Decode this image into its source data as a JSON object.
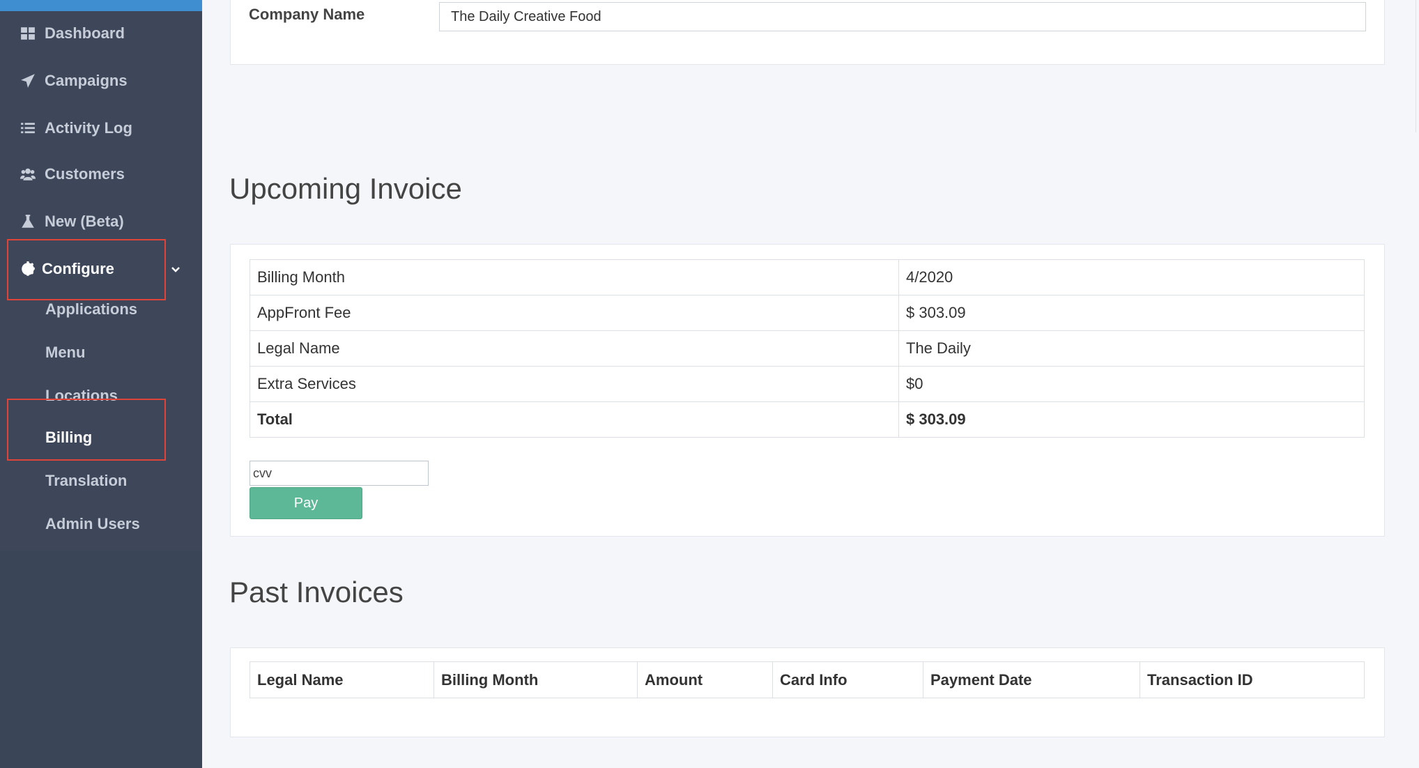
{
  "sidebar": {
    "items": [
      {
        "label": "Dashboard",
        "icon": "dashboard-icon"
      },
      {
        "label": "Campaigns",
        "icon": "paper-plane-icon"
      },
      {
        "label": "Activity Log",
        "icon": "list-icon"
      },
      {
        "label": "Customers",
        "icon": "users-icon"
      },
      {
        "label": "New (Beta)",
        "icon": "flask-icon"
      },
      {
        "label": "Configure",
        "icon": "gear-icon"
      }
    ],
    "subitems": [
      "Applications",
      "Menu",
      "Locations",
      "Billing",
      "Translation",
      "Admin Users"
    ]
  },
  "company": {
    "label": "Company Name",
    "value": "The Daily Creative Food"
  },
  "upcoming": {
    "title": "Upcoming Invoice",
    "rows": [
      {
        "label": "Billing Month",
        "value": "4/2020"
      },
      {
        "label": "AppFront Fee",
        "value": "$ 303.09"
      },
      {
        "label": "Legal Name",
        "value": "The Daily"
      },
      {
        "label": "Extra Services",
        "value": "$0"
      },
      {
        "label": "Total",
        "value": "$ 303.09"
      }
    ],
    "cvv_placeholder": "cvv",
    "pay_label": "Pay"
  },
  "past": {
    "title": "Past Invoices",
    "headers": [
      "Legal Name",
      "Billing Month",
      "Amount",
      "Card Info",
      "Payment Date",
      "Transaction ID"
    ]
  },
  "colors": {
    "sidebar_bg": "#3e475a",
    "accent_top": "#3e8ed0",
    "highlight": "#e04337",
    "pay_button": "#5cb897"
  }
}
